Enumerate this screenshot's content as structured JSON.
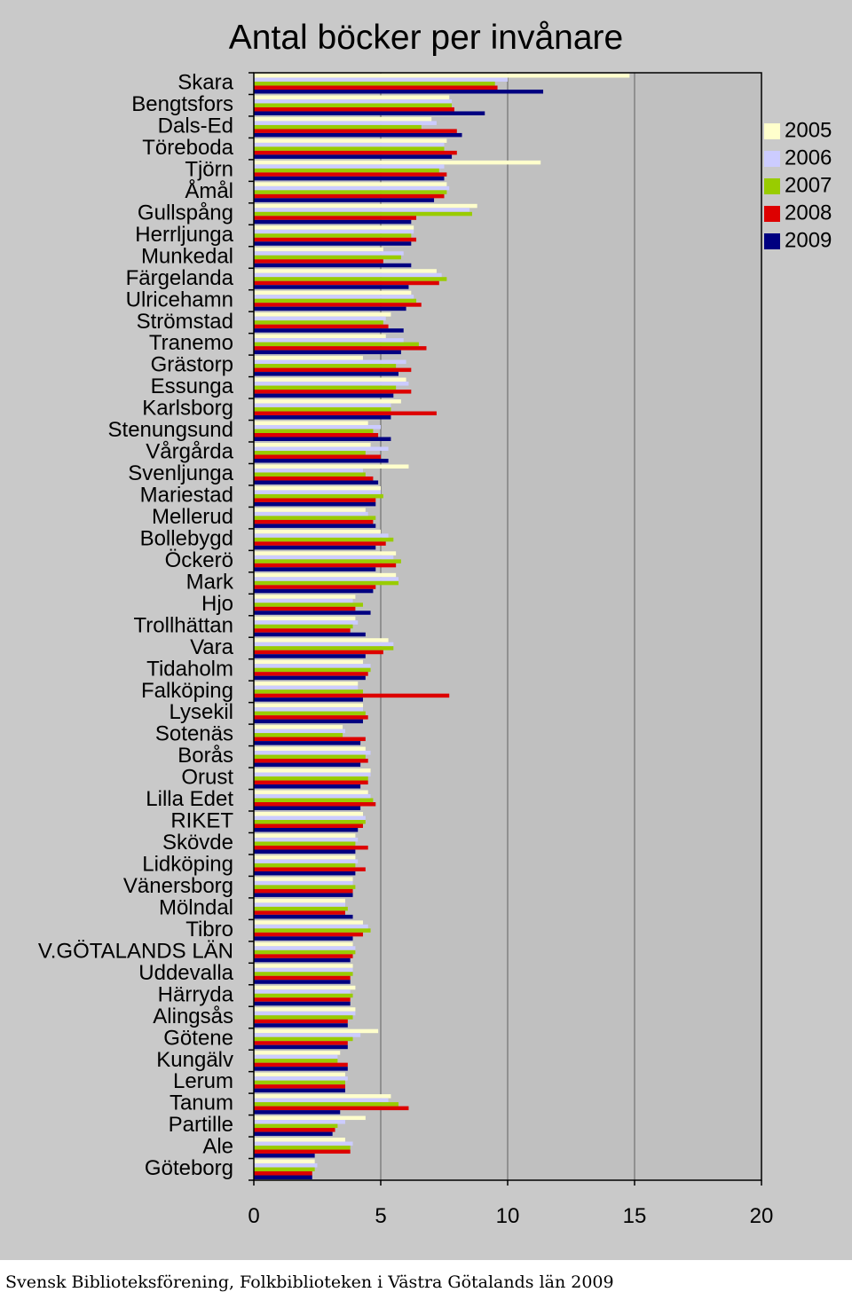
{
  "chart_data": {
    "type": "bar",
    "orientation": "horizontal",
    "title": "Antal böcker per invånare",
    "xlabel": "",
    "ylabel": "",
    "xlim": [
      0,
      20
    ],
    "x_ticks": [
      "0",
      "5",
      "10",
      "15",
      "20"
    ],
    "grid": "vertical",
    "legend_position": "right",
    "categories": [
      "Skara",
      "Bengtsfors",
      "Dals-Ed",
      "Töreboda",
      "Tjörn",
      "Åmål",
      "Gullspång",
      "Herrljunga",
      "Munkedal",
      "Färgelanda",
      "Ulricehamn",
      "Strömstad",
      "Tranemo",
      "Grästorp",
      "Essunga",
      "Karlsborg",
      "Stenungsund",
      "Vårgårda",
      "Svenljunga",
      "Mariestad",
      "Mellerud",
      "Bollebygd",
      "Öckerö",
      "Mark",
      "Hjo",
      "Trollhättan",
      "Vara",
      "Tidaholm",
      "Falköping",
      "Lysekil",
      "Sotenäs",
      "Borås",
      "Orust",
      "Lilla Edet",
      "RIKET",
      "Skövde",
      "Lidköping",
      "Vänersborg",
      "Mölndal",
      "Tibro",
      "V.GÖTALANDS LÄN",
      "Uddevalla",
      "Härryda",
      "Alingsås",
      "Götene",
      "Kungälv",
      "Lerum",
      "Tanum",
      "Partille",
      "Ale",
      "Göteborg"
    ],
    "series": [
      {
        "name": "2005",
        "color": "#ffffcc",
        "values": [
          14.8,
          7.7,
          7.0,
          7.6,
          11.3,
          7.6,
          8.8,
          6.3,
          5.1,
          7.2,
          6.2,
          5.4,
          5.2,
          4.3,
          6.0,
          5.8,
          4.5,
          4.6,
          6.1,
          5.0,
          4.4,
          5.0,
          5.6,
          5.6,
          4.0,
          4.0,
          5.3,
          4.3,
          4.1,
          4.3,
          3.5,
          4.4,
          4.6,
          4.5,
          4.3,
          4.0,
          4.0,
          3.9,
          3.6,
          4.3,
          3.9,
          3.9,
          4.0,
          4.0,
          4.9,
          3.4,
          3.6,
          5.4,
          4.4,
          3.6,
          2.4
        ]
      },
      {
        "name": "2006",
        "color": "#ccccff",
        "values": [
          10.0,
          7.8,
          7.2,
          7.5,
          7.5,
          7.7,
          8.5,
          6.3,
          5.9,
          7.4,
          6.3,
          5.2,
          5.9,
          6.0,
          6.1,
          5.4,
          5.0,
          5.3,
          4.3,
          5.0,
          4.5,
          5.3,
          5.5,
          5.7,
          3.9,
          4.1,
          5.5,
          4.6,
          4.1,
          4.3,
          3.6,
          4.6,
          4.6,
          4.6,
          4.4,
          4.1,
          4.1,
          3.9,
          3.6,
          4.5,
          4.0,
          3.9,
          3.8,
          4.0,
          4.2,
          3.3,
          3.7,
          5.3,
          3.6,
          3.9,
          2.5
        ]
      },
      {
        "name": "2007",
        "color": "#99cc00",
        "values": [
          9.5,
          7.8,
          6.6,
          7.5,
          7.3,
          7.6,
          8.6,
          6.2,
          5.8,
          7.6,
          6.4,
          5.1,
          6.5,
          5.6,
          5.6,
          5.4,
          4.7,
          4.4,
          4.4,
          5.1,
          4.8,
          5.5,
          5.8,
          5.7,
          4.3,
          3.9,
          5.5,
          4.6,
          4.3,
          4.4,
          3.5,
          4.4,
          4.5,
          4.7,
          4.4,
          4.0,
          4.0,
          4.0,
          3.7,
          4.6,
          4.0,
          3.9,
          3.9,
          3.9,
          3.9,
          3.3,
          3.6,
          5.7,
          3.3,
          3.8,
          2.4
        ]
      },
      {
        "name": "2008",
        "color": "#dd0000",
        "values": [
          9.6,
          7.9,
          8.0,
          8.0,
          7.6,
          7.5,
          6.4,
          6.4,
          5.1,
          7.3,
          6.6,
          5.3,
          6.8,
          6.2,
          6.2,
          7.2,
          4.9,
          5.0,
          4.7,
          4.8,
          4.7,
          5.2,
          5.6,
          4.8,
          4.0,
          3.8,
          5.1,
          4.5,
          7.7,
          4.5,
          4.4,
          4.5,
          4.5,
          4.8,
          4.3,
          4.5,
          4.4,
          3.9,
          3.6,
          4.3,
          3.9,
          3.8,
          3.8,
          3.7,
          3.7,
          3.7,
          3.6,
          6.1,
          3.2,
          3.8,
          2.3
        ]
      },
      {
        "name": "2009",
        "color": "#000080",
        "values": [
          11.4,
          9.1,
          8.2,
          7.8,
          7.5,
          7.1,
          6.2,
          6.2,
          6.2,
          6.1,
          6.0,
          5.9,
          5.8,
          5.7,
          5.5,
          5.4,
          5.4,
          5.3,
          4.9,
          4.8,
          4.8,
          4.8,
          4.8,
          4.7,
          4.6,
          4.4,
          4.4,
          4.4,
          4.3,
          4.3,
          4.2,
          4.2,
          4.2,
          4.2,
          4.1,
          4.0,
          4.0,
          3.9,
          3.9,
          3.9,
          3.8,
          3.8,
          3.8,
          3.7,
          3.7,
          3.7,
          3.6,
          3.4,
          3.1,
          2.4,
          2.3
        ]
      }
    ]
  },
  "footer": "Svensk Biblioteksförening, Folkbiblioteken i Västra Götalands län 2009"
}
